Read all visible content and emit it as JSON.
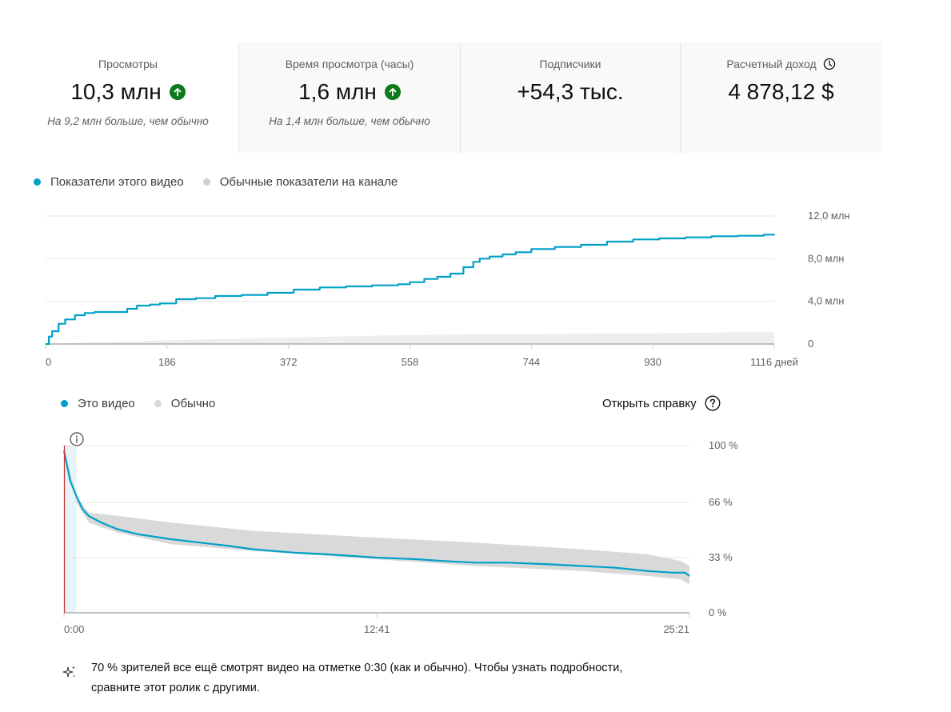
{
  "metrics": [
    {
      "label": "Просмотры",
      "value": "10,3 млн",
      "trend": "up",
      "note": "На 9,2 млн больше, чем обычно"
    },
    {
      "label": "Время просмотра (часы)",
      "value": "1,6 млн",
      "trend": "up",
      "note": "На 1,4 млн больше, чем обычно"
    },
    {
      "label": "Подписчики",
      "value": "+54,3 тыс.",
      "trend": null,
      "note": ""
    },
    {
      "label": "Расчетный доход",
      "value": "4 878,12 $",
      "trend": null,
      "note": "",
      "icon": "clock-icon"
    }
  ],
  "colors": {
    "accent": "#00a0c9",
    "baseline": "#d9d9d9",
    "baseline_light": "#eeeeee",
    "trend_up": "#0f7a1c",
    "marker": "#cc3333",
    "grid": "#e5e5e5",
    "axis": "#9e9e9e"
  },
  "help": {
    "label": "Открыть справку",
    "icon": "help-icon"
  },
  "insight": {
    "icon": "sparkle-icon",
    "text": "70 % зрителей все ещё смотрят видео на отметке 0:30 (как и обычно). Чтобы узнать подробности, сравните этот ролик с другими."
  },
  "chart_data": [
    {
      "type": "line",
      "title": "",
      "legend": [
        "Показатели этого видео",
        "Обычные показатели на канале"
      ],
      "legend_position": "top-left",
      "xlabel": "",
      "ylabel": "",
      "x_ticks": [
        "0",
        "186",
        "372",
        "558",
        "744",
        "930",
        "1116 дней"
      ],
      "x_tick_values": [
        0,
        186,
        372,
        558,
        744,
        930,
        1116
      ],
      "y_ticks": [
        "0",
        "4,0 млн",
        "8,0 млн",
        "12,0 млн"
      ],
      "y_tick_values": [
        0,
        4000000,
        8000000,
        12000000
      ],
      "xlim": [
        0,
        1116
      ],
      "ylim": [
        0,
        12000000
      ],
      "grid": true,
      "y_axis_side": "right",
      "series": [
        {
          "name": "Показатели этого видео",
          "x": [
            0,
            5,
            10,
            20,
            30,
            45,
            60,
            75,
            95,
            110,
            125,
            140,
            160,
            175,
            200,
            230,
            260,
            300,
            340,
            380,
            420,
            460,
            500,
            540,
            558,
            580,
            600,
            620,
            640,
            655,
            665,
            680,
            700,
            720,
            744,
            780,
            820,
            860,
            900,
            940,
            980,
            1020,
            1060,
            1100,
            1116
          ],
          "values": [
            0,
            700000,
            1200000,
            1900000,
            2300000,
            2700000,
            2900000,
            3000000,
            3000000,
            3000000,
            3300000,
            3600000,
            3700000,
            3800000,
            4200000,
            4300000,
            4500000,
            4600000,
            4800000,
            5100000,
            5300000,
            5400000,
            5500000,
            5600000,
            5800000,
            6100000,
            6300000,
            6600000,
            7200000,
            7700000,
            8000000,
            8200000,
            8400000,
            8600000,
            8900000,
            9100000,
            9300000,
            9600000,
            9800000,
            9900000,
            10000000,
            10100000,
            10150000,
            10250000,
            10300000
          ]
        },
        {
          "name": "Обычные показатели на канале",
          "x": [
            0,
            186,
            372,
            558,
            744,
            930,
            1116
          ],
          "lower": [
            0,
            0,
            0,
            0,
            0,
            0,
            0
          ],
          "upper": [
            0,
            350000,
            600000,
            850000,
            950000,
            1000000,
            1150000
          ]
        }
      ]
    },
    {
      "type": "line",
      "title": "",
      "legend": [
        "Это видео",
        "Обычно"
      ],
      "legend_position": "top-left",
      "xlabel": "",
      "ylabel": "",
      "x_ticks": [
        "0:00",
        "12:41",
        "25:21"
      ],
      "x_tick_values": [
        0,
        761,
        1521
      ],
      "y_ticks": [
        "0 %",
        "33 %",
        "66 %",
        "100 %"
      ],
      "y_tick_values": [
        0,
        33,
        66,
        100
      ],
      "xlim": [
        0,
        1521
      ],
      "ylim": [
        0,
        100
      ],
      "grid": true,
      "y_axis_side": "right",
      "highlight_range_seconds": [
        0,
        30
      ],
      "marker_seconds": 0,
      "series": [
        {
          "name": "Это видео",
          "x": [
            0,
            15,
            30,
            45,
            60,
            90,
            130,
            180,
            260,
            330,
            400,
            460,
            560,
            640,
            760,
            860,
            920,
            1000,
            1080,
            1180,
            1260,
            1340,
            1420,
            1480,
            1510,
            1521
          ],
          "values": [
            97,
            79,
            70,
            62,
            58,
            54,
            50,
            47,
            44,
            42,
            40,
            38,
            36,
            35,
            33,
            32,
            31,
            30,
            30,
            29,
            28,
            27,
            25,
            24,
            24,
            22
          ]
        },
        {
          "name": "Обычно",
          "x": [
            0,
            30,
            60,
            130,
            260,
            460,
            760,
            1000,
            1260,
            1420,
            1500,
            1521
          ],
          "lower": [
            96,
            66,
            54,
            48,
            41,
            37,
            32,
            28,
            25,
            22,
            20,
            17
          ],
          "upper": [
            98,
            70,
            60,
            58,
            54,
            49,
            45,
            42,
            38,
            35,
            31,
            28
          ]
        }
      ]
    }
  ]
}
